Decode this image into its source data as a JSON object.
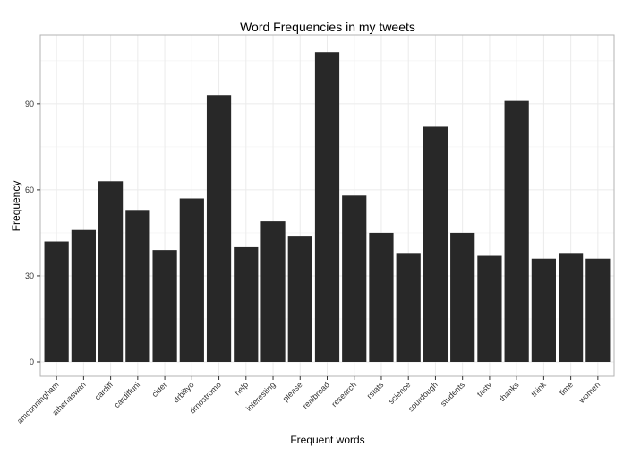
{
  "chart_data": {
    "type": "bar",
    "title": "Word Frequencies in my tweets",
    "xlabel": "Frequent words",
    "ylabel": "Frequency",
    "ylim": [
      -5,
      114
    ],
    "yticks": [
      0,
      30,
      60,
      90
    ],
    "grid": true,
    "categories": [
      "amcunningham",
      "athenaswan",
      "cardiff",
      "cardiffuni",
      "cider",
      "drbillyo",
      "drnostromo",
      "help",
      "interesting",
      "please",
      "realbread",
      "research",
      "rstats",
      "science",
      "sourdough",
      "students",
      "tasty",
      "thanks",
      "think",
      "time",
      "women"
    ],
    "values": [
      42,
      46,
      63,
      53,
      39,
      57,
      93,
      40,
      49,
      44,
      108,
      58,
      45,
      38,
      82,
      45,
      37,
      91,
      36,
      38,
      36
    ]
  }
}
